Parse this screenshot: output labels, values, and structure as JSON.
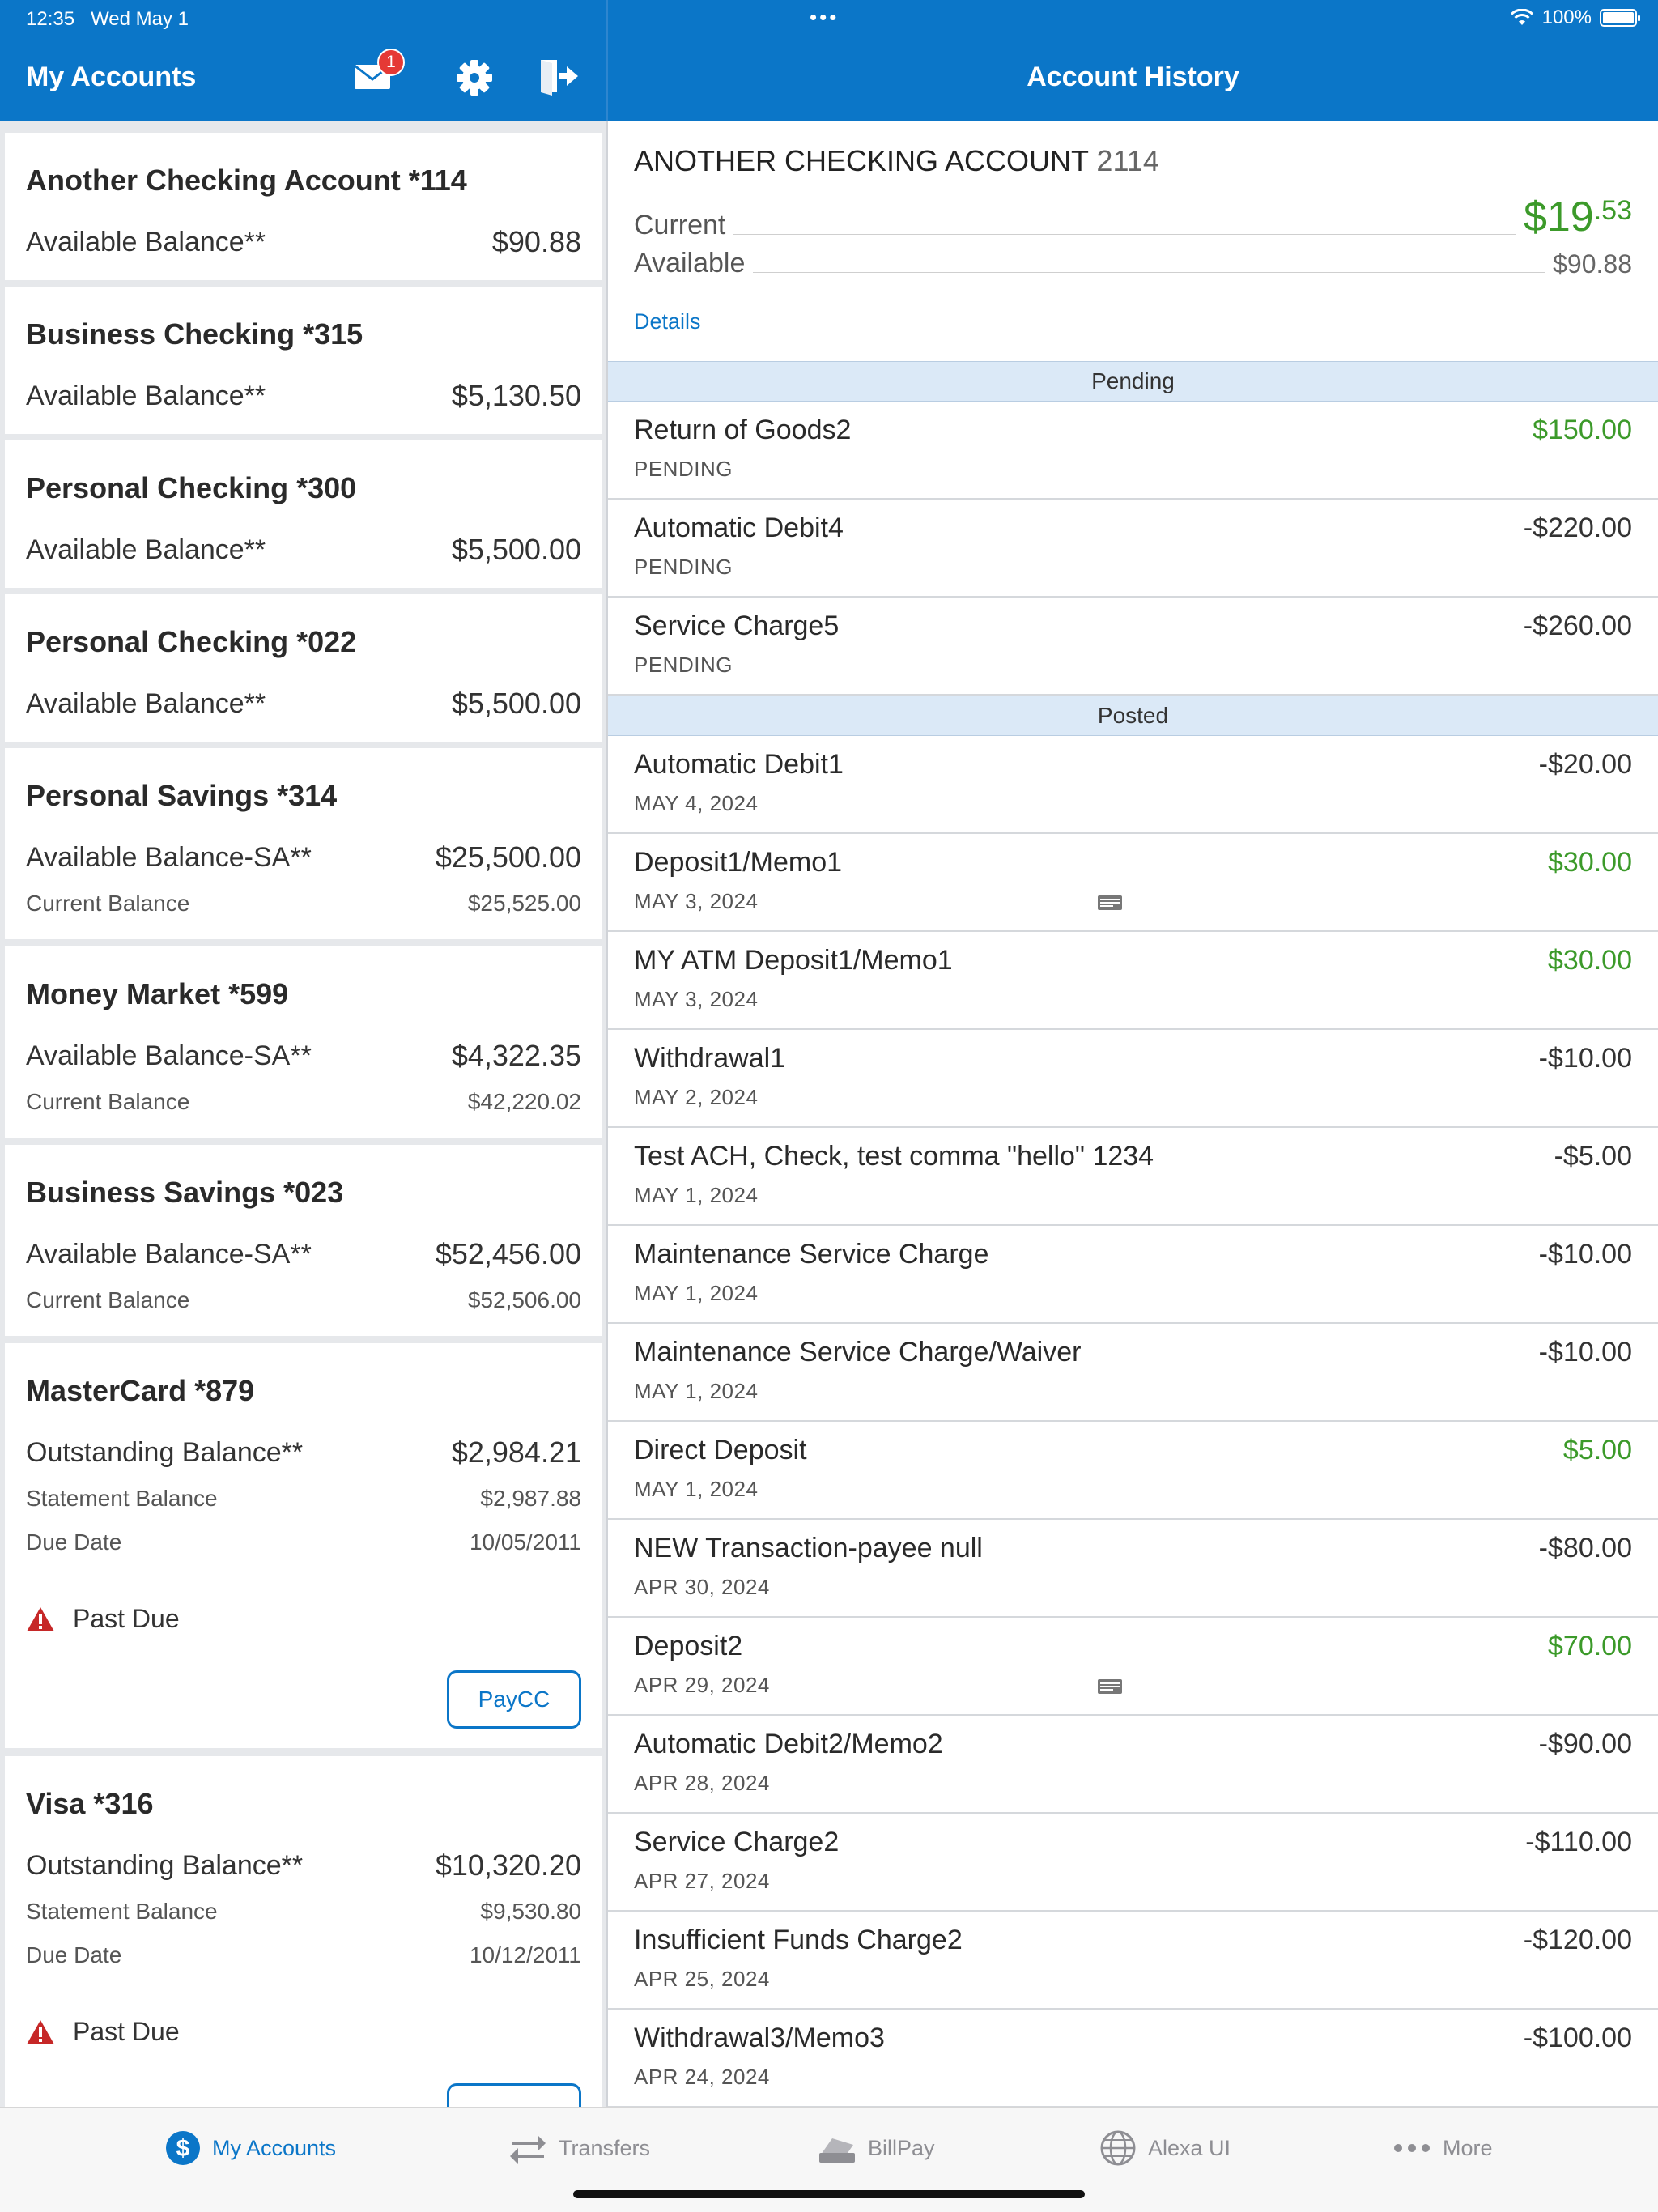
{
  "status_bar": {
    "time": "12:35",
    "date": "Wed May 1",
    "battery": "100%"
  },
  "header": {
    "left_title": "My Accounts",
    "right_title": "Account History",
    "unread_count": "1"
  },
  "accounts": [
    {
      "name": "Another Checking Account *114",
      "primary_label": "Available Balance**",
      "primary_value": "$90.88"
    },
    {
      "name": "Business Checking *315",
      "primary_label": "Available Balance**",
      "primary_value": "$5,130.50"
    },
    {
      "name": "Personal Checking *300",
      "primary_label": "Available Balance**",
      "primary_value": "$5,500.00"
    },
    {
      "name": "Personal Checking *022",
      "primary_label": "Available Balance**",
      "primary_value": "$5,500.00"
    },
    {
      "name": "Personal Savings *314",
      "primary_label": "Available Balance-SA**",
      "primary_value": "$25,500.00",
      "secondary_label": "Current Balance",
      "secondary_value": "$25,525.00"
    },
    {
      "name": "Money Market *599",
      "primary_label": "Available Balance-SA**",
      "primary_value": "$4,322.35",
      "secondary_label": "Current Balance",
      "secondary_value": "$42,220.02"
    },
    {
      "name": "Business Savings *023",
      "primary_label": "Available Balance-SA**",
      "primary_value": "$52,456.00",
      "secondary_label": "Current Balance",
      "secondary_value": "$52,506.00"
    },
    {
      "name": "MasterCard *879",
      "primary_label": "Outstanding Balance**",
      "primary_value": "$2,984.21",
      "secondary_label": "Statement Balance",
      "secondary_value": "$2,987.88",
      "due_label": "Due Date",
      "due_value": "10/05/2011",
      "alert": "Past Due",
      "button": "PayCC"
    },
    {
      "name": "Visa *316",
      "primary_label": "Outstanding Balance**",
      "primary_value": "$10,320.20",
      "secondary_label": "Statement Balance",
      "secondary_value": "$9,530.80",
      "due_label": "Due Date",
      "due_value": "10/12/2011",
      "alert": "Past Due"
    }
  ],
  "history": {
    "account_name": "ANOTHER CHECKING ACCOUNT",
    "account_number": "2114",
    "current_label": "Current",
    "current_dollars": "$19",
    "current_cents": ".53",
    "available_label": "Available",
    "available_value": "$90.88",
    "details_link": "Details",
    "pending_header": "Pending",
    "posted_header": "Posted",
    "pending": [
      {
        "desc": "Return of Goods2",
        "sub": "PENDING",
        "amount": "$150.00",
        "positive": true
      },
      {
        "desc": "Automatic Debit4",
        "sub": "PENDING",
        "amount": "-$220.00",
        "positive": false
      },
      {
        "desc": "Service Charge5",
        "sub": "PENDING",
        "amount": "-$260.00",
        "positive": false
      }
    ],
    "posted": [
      {
        "desc": "Automatic Debit1",
        "sub": "MAY 4, 2024",
        "amount": "-$20.00",
        "positive": false
      },
      {
        "desc": "Deposit1/Memo1",
        "sub": "MAY 3, 2024",
        "amount": "$30.00",
        "positive": true,
        "has_image": true
      },
      {
        "desc": "MY ATM Deposit1/Memo1",
        "sub": "MAY 3, 2024",
        "amount": "$30.00",
        "positive": true
      },
      {
        "desc": "Withdrawal1",
        "sub": "MAY 2, 2024",
        "amount": "-$10.00",
        "positive": false
      },
      {
        "desc": "Test ACH, Check, test comma \"hello\" 1234",
        "sub": "MAY 1, 2024",
        "amount": "-$5.00",
        "positive": false
      },
      {
        "desc": "Maintenance Service Charge",
        "sub": "MAY 1, 2024",
        "amount": "-$10.00",
        "positive": false
      },
      {
        "desc": "Maintenance Service Charge/Waiver",
        "sub": "MAY 1, 2024",
        "amount": "-$10.00",
        "positive": false
      },
      {
        "desc": "Direct Deposit",
        "sub": "MAY 1, 2024",
        "amount": "$5.00",
        "positive": true
      },
      {
        "desc": "NEW Transaction-payee null",
        "sub": "APR 30, 2024",
        "amount": "-$80.00",
        "positive": false
      },
      {
        "desc": "Deposit2",
        "sub": "APR 29, 2024",
        "amount": "$70.00",
        "positive": true,
        "has_image": true
      },
      {
        "desc": "Automatic Debit2/Memo2",
        "sub": "APR 28, 2024",
        "amount": "-$90.00",
        "positive": false
      },
      {
        "desc": "Service Charge2",
        "sub": "APR 27, 2024",
        "amount": "-$110.00",
        "positive": false
      },
      {
        "desc": "Insufficient Funds Charge2",
        "sub": "APR 25, 2024",
        "amount": "-$120.00",
        "positive": false
      },
      {
        "desc": "Withdrawal3/Memo3",
        "sub": "APR 24, 2024",
        "amount": "-$100.00",
        "positive": false
      }
    ]
  },
  "tabs": [
    {
      "label": "My Accounts",
      "icon": "dollar-circle-icon",
      "active": true
    },
    {
      "label": "Transfers",
      "icon": "transfer-arrows-icon",
      "active": false
    },
    {
      "label": "BillPay",
      "icon": "billpay-icon",
      "active": false
    },
    {
      "label": "Alexa UI",
      "icon": "globe-icon",
      "active": false
    },
    {
      "label": "More",
      "icon": "more-dots-icon",
      "active": false
    }
  ],
  "colors": {
    "brand_blue": "#0b76c8",
    "positive_green": "#3c9a2a",
    "alert_red": "#c62828"
  }
}
